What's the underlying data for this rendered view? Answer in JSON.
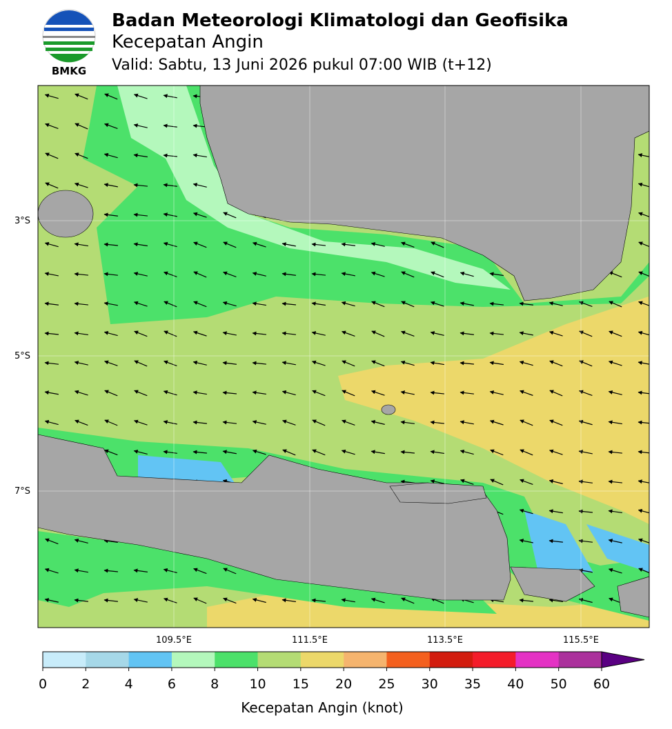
{
  "header": {
    "logo_text": "BMKG",
    "title": "Badan Meteorologi Klimatologi dan Geofisika",
    "subtitle": "Kecepatan Angin",
    "valid": "Valid: Sabtu, 13 Juni 2026 pukul 07:00 WIB (t+12)"
  },
  "map": {
    "lat_labels": [
      "3°S",
      "5°S",
      "7°S"
    ],
    "lon_labels": [
      "109.5°E",
      "111.5°E",
      "113.5°E",
      "115.5°E"
    ]
  },
  "colorbar": {
    "ticks": [
      0,
      2,
      4,
      6,
      8,
      10,
      15,
      20,
      25,
      30,
      35,
      40,
      50,
      60
    ],
    "colors": [
      "#c8ecfa",
      "#a6d8e8",
      "#62c4f4",
      "#b4f8bc",
      "#4ce16a",
      "#b4dc74",
      "#ecd86a",
      "#f5b46e",
      "#f4601e",
      "#d21c0e",
      "#f41c2a",
      "#e432c4",
      "#ab319c"
    ],
    "extend_color": "#5a0082",
    "label": "Kecepatan Angin (knot)"
  }
}
